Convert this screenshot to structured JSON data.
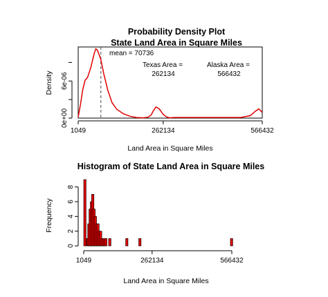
{
  "chart_data": [
    {
      "type": "line",
      "title": "Probability Density Plot",
      "subtitle": "State Land Area in Square Miles",
      "xlabel": "Land Area in Square Miles",
      "ylabel": "Density",
      "xlim": [
        1049,
        566432
      ],
      "ylim": [
        0,
        1.15e-05
      ],
      "x_ticks": [
        1049,
        262134,
        566432
      ],
      "x_tick_labels": [
        "1049",
        "262134",
        "566432"
      ],
      "y_ticks": [
        0,
        6e-06
      ],
      "y_tick_labels": [
        "0e+00",
        "6e-06"
      ],
      "series": [
        {
          "color": "#e00000",
          "x": [
            1049,
            8000,
            15000,
            22000,
            30000,
            40000,
            50000,
            55000,
            60000,
            70000,
            80000,
            92000,
            105000,
            120000,
            140000,
            160000,
            180000,
            200000,
            215000,
            225000,
            232000,
            240000,
            250000,
            262134,
            272000,
            282000,
            295000,
            320000,
            380000,
            450000,
            500000,
            530000,
            545000,
            556000,
            566432
          ],
          "y": [
            2e-07,
            2.2e-06,
            4.6e-06,
            6.1e-06,
            6.6e-06,
            8.2e-06,
            1.04e-05,
            1.12e-05,
            1.1e-05,
            9.6e-06,
            7.1e-06,
            4.5e-06,
            2.5e-06,
            1.4e-06,
            7e-07,
            3e-07,
            1e-07,
            5e-08,
            1.5e-07,
            5e-07,
            1.2e-06,
            1.8e-06,
            1.5e-06,
            6e-07,
            2e-07,
            5e-08,
            1e-07,
            1e-07,
            1e-07,
            1e-07,
            1e-07,
            4e-07,
            1.1e-06,
            1.5e-06,
            9e-07
          ]
        }
      ],
      "reference_line": {
        "x": 70736,
        "style": "dashed",
        "label": "mean =  70736"
      },
      "annotations": [
        {
          "line1": "Texas Area =",
          "line2": "262134"
        },
        {
          "line1": "Alaska Area =",
          "line2": "566432"
        }
      ]
    },
    {
      "type": "bar",
      "title": "Histogram of State Land Area in Square Miles",
      "xlabel": "Land Area in Square Miles",
      "ylabel": "Frequency",
      "xlim": [
        1049,
        566432
      ],
      "ylim": [
        0,
        9
      ],
      "x_ticks": [
        1049,
        262134,
        566432
      ],
      "x_tick_labels": [
        "1049",
        "262134",
        "566432"
      ],
      "y_ticks": [
        0,
        2,
        4,
        6,
        8
      ],
      "y_tick_labels": [
        "0",
        "2",
        "4",
        "6",
        "8"
      ],
      "bar_color": "#e00000",
      "bin_width": 5000,
      "bin_starts": [
        1049,
        11049,
        16049,
        21049,
        26049,
        31049,
        36049,
        41049,
        46049,
        51049,
        56049,
        61049,
        66049,
        71049,
        76049,
        81049,
        86049,
        91049,
        96049,
        101049,
        106049,
        111049,
        116049,
        121049,
        126049,
        131049,
        136049,
        141049,
        146049,
        151049,
        156049,
        161049,
        211049,
        561049
      ],
      "values": [
        9,
        1,
        3,
        5,
        6,
        7,
        5,
        4,
        3,
        3,
        2,
        2,
        1,
        1,
        1,
        1,
        0,
        0,
        1,
        0,
        0,
        0,
        0,
        0,
        0,
        0,
        0,
        0,
        0,
        0,
        0,
        1,
        1,
        1
      ]
    }
  ]
}
